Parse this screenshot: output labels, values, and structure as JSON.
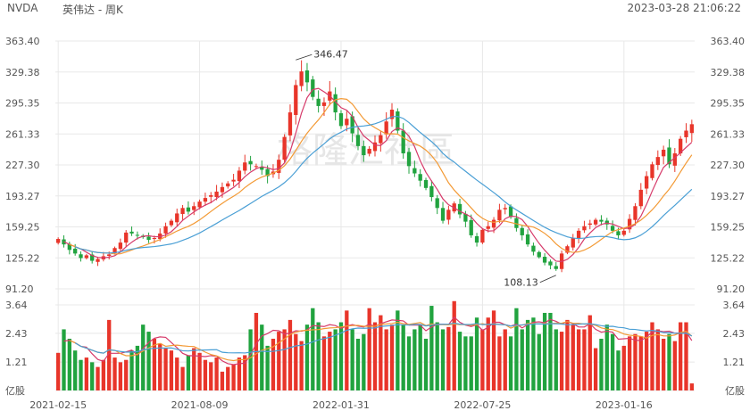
{
  "header": {
    "symbol": "NVDA",
    "name": "英伟达 - 周K",
    "datetime": "2023-03-28 21:06:22"
  },
  "watermark": "格隆汇社區",
  "colors": {
    "up": "#e8352a",
    "down": "#21a33f",
    "ma_a": "#d63a6a",
    "ma_b": "#f39a35",
    "ma_c": "#4a9fd5",
    "grid": "#e8e8e8",
    "axis_text": "#555555"
  },
  "chart_data": [
    {
      "type": "candlestick",
      "y_ticks": [
        "363.40",
        "329.38",
        "295.35",
        "261.33",
        "227.30",
        "193.27",
        "159.25",
        "125.22",
        "91.20"
      ],
      "ylim": [
        91.2,
        363.4
      ],
      "x_ticks": [
        {
          "label": "2021-02-15",
          "index": 0
        },
        {
          "label": "2021-08-09",
          "index": 25
        },
        {
          "label": "2022-01-31",
          "index": 50
        },
        {
          "label": "2022-07-25",
          "index": 75
        },
        {
          "label": "2023-01-16",
          "index": 100
        }
      ],
      "annotations": [
        {
          "label": "346.47",
          "index": 42,
          "value": 346.47
        },
        {
          "label": "108.13",
          "index": 88,
          "value": 108.13
        }
      ],
      "close": [
        146,
        140,
        134,
        130,
        125,
        128,
        122,
        124,
        127,
        129,
        136,
        142,
        153,
        152,
        150,
        148,
        145,
        147,
        152,
        160,
        166,
        174,
        180,
        176,
        182,
        187,
        191,
        194,
        198,
        203,
        207,
        211,
        221,
        230,
        228,
        226,
        222,
        215,
        220,
        233,
        258,
        285,
        315,
        330,
        318,
        302,
        292,
        296,
        308,
        285,
        270,
        278,
        262,
        248,
        238,
        245,
        252,
        260,
        275,
        288,
        265,
        240,
        226,
        218,
        210,
        202,
        192,
        180,
        166,
        178,
        185,
        173,
        165,
        150,
        142,
        156,
        160,
        167,
        178,
        180,
        170,
        158,
        150,
        140,
        132,
        126,
        120,
        117,
        113,
        130,
        138,
        147,
        155,
        160,
        163,
        167,
        165,
        162,
        155,
        150,
        155,
        168,
        182,
        200,
        215,
        228,
        236,
        244,
        228,
        240,
        256,
        265,
        272
      ]
    },
    {
      "type": "bar",
      "y_ticks": [
        "3.64",
        "2.43",
        "1.21"
      ],
      "unit_label": "亿股",
      "ylim": [
        0,
        3.64
      ],
      "values": [
        1.6,
        2.6,
        2.2,
        1.7,
        1.3,
        1.4,
        1.2,
        1.0,
        1.3,
        3.0,
        1.4,
        1.2,
        1.3,
        1.7,
        1.9,
        2.8,
        2.5,
        2.2,
        2.0,
        1.8,
        1.7,
        1.4,
        1.0,
        1.5,
        1.8,
        1.6,
        1.3,
        1.2,
        1.4,
        0.8,
        1.0,
        1.1,
        1.4,
        1.5,
        2.6,
        3.3,
        2.8,
        1.9,
        2.2,
        2.5,
        2.6,
        3.0,
        2.4,
        2.1,
        2.8,
        3.5,
        2.9,
        2.3,
        2.5,
        2.6,
        2.9,
        3.4,
        2.6,
        2.2,
        2.4,
        3.5,
        2.9,
        3.2,
        2.6,
        2.8,
        3.4,
        2.8,
        2.3,
        2.6,
        2.8,
        2.2,
        3.6,
        2.9,
        2.6,
        2.7,
        3.8,
        2.5,
        2.3,
        2.3,
        3.1,
        2.6,
        3.1,
        3.4,
        2.3,
        2.6,
        2.3,
        3.5,
        2.6,
        3.0,
        3.1,
        2.4,
        3.3,
        3.3,
        2.6,
        2.5,
        3.0,
        2.8,
        2.6,
        2.6,
        3.2,
        1.8,
        2.2,
        2.8,
        2.4,
        1.7,
        1.9,
        2.3,
        2.4,
        2.3,
        2.5,
        2.9,
        2.6,
        2.2,
        2.4,
        2.1,
        2.9,
        2.9,
        0.3
      ]
    }
  ]
}
